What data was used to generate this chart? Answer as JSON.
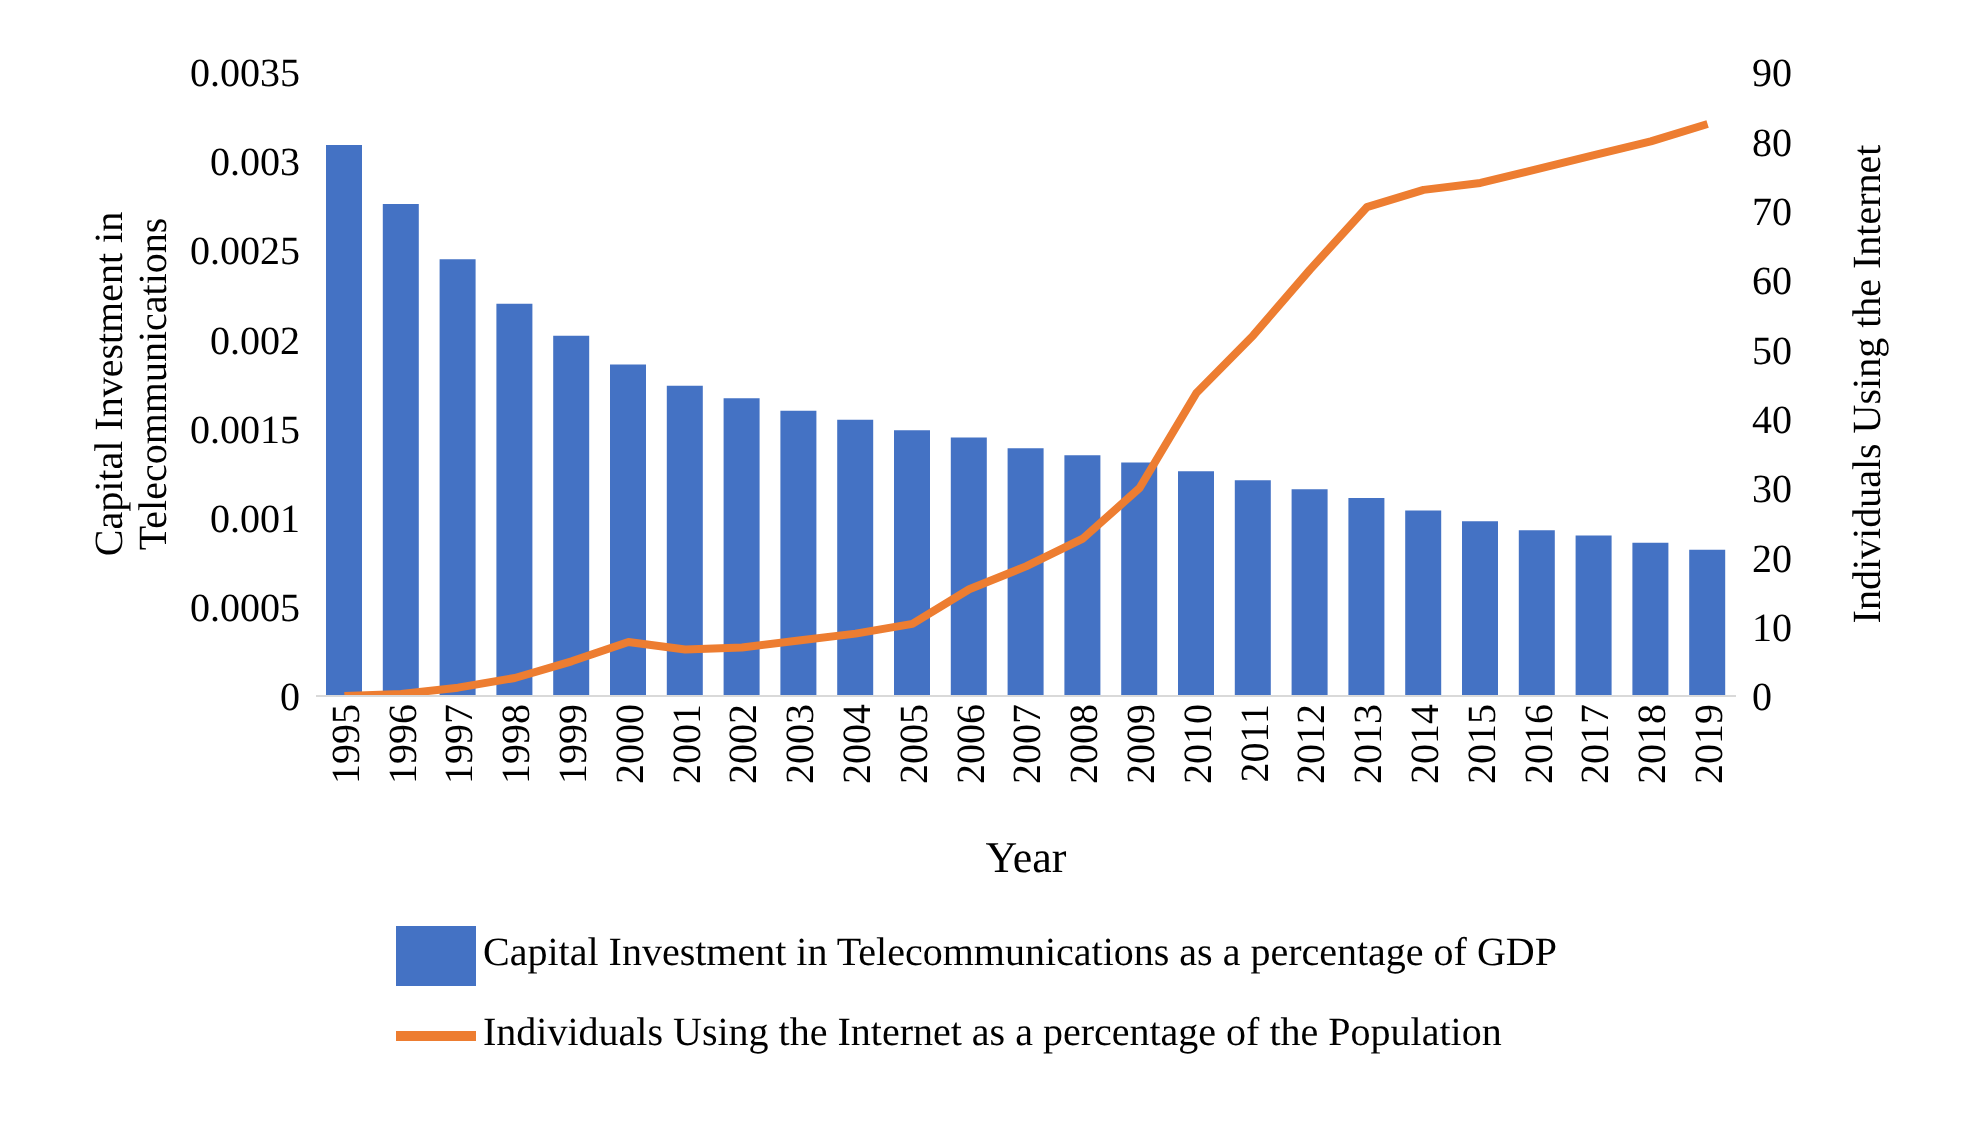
{
  "chart_data": {
    "type": "bar",
    "xlabel": "Year",
    "ylabel": "Capital Investment in Telecommunications",
    "y2label": "Individuals Using the Internet",
    "categories": [
      "1995",
      "1996",
      "1997",
      "1998",
      "1999",
      "2000",
      "2001",
      "2002",
      "2003",
      "2004",
      "2005",
      "2006",
      "2007",
      "2008",
      "2009",
      "2010",
      "2011",
      "2012",
      "2013",
      "2014",
      "2015",
      "2016",
      "2017",
      "2018",
      "2019"
    ],
    "series": [
      {
        "name": "Capital Investment in Telecommunications as a percentage of GDP",
        "color": "#4472c4",
        "values": [
          0.00309,
          0.00276,
          0.00245,
          0.0022,
          0.00202,
          0.00186,
          0.00174,
          0.00167,
          0.0016,
          0.00155,
          0.00149,
          0.00145,
          0.00139,
          0.00135,
          0.00131,
          0.00126,
          0.00121,
          0.00116,
          0.00111,
          0.00104,
          0.00098,
          0.00093,
          0.0009,
          0.00086,
          0.00082
        ]
      },
      {
        "name": "Individuals Using the Internet as a percentage of the Population",
        "type": "line",
        "axis": "y2",
        "color": "#ed7d31",
        "values": [
          0,
          0.3,
          1.2,
          2.6,
          5,
          7.8,
          6.7,
          7,
          8,
          9,
          10.4,
          15.4,
          18.7,
          22.7,
          30,
          43.7,
          52,
          61.5,
          70.5,
          73,
          74,
          76,
          78,
          80,
          82.5
        ]
      }
    ],
    "ylim": [
      0,
      0.0035
    ],
    "yticks": [
      0,
      0.0005,
      0.001,
      0.0015,
      0.002,
      0.0025,
      0.003,
      0.0035
    ],
    "y2lim": [
      0,
      90
    ],
    "y2ticks": [
      0,
      10,
      20,
      30,
      40,
      50,
      60,
      70,
      80,
      90
    ],
    "grid": false,
    "legend": "bottom",
    "marker": "none"
  }
}
